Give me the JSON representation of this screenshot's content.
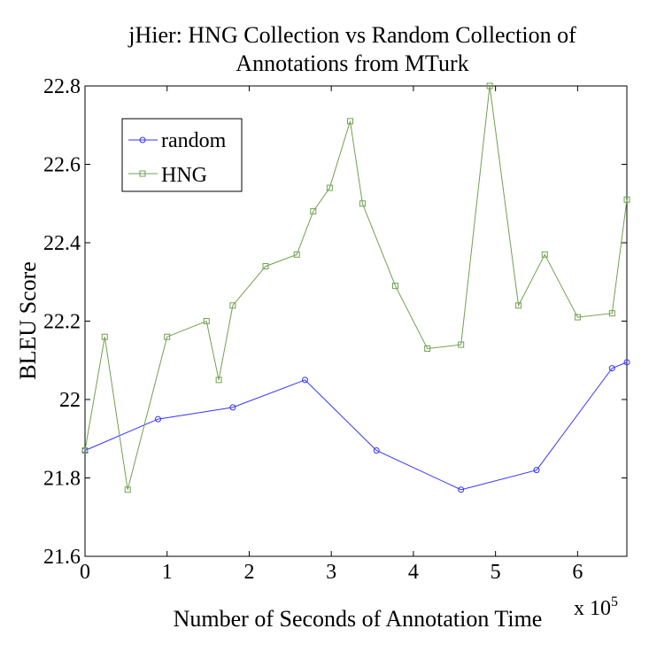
{
  "chart_data": {
    "type": "line",
    "title": [
      "jHier: HNG Collection vs Random Collection of",
      "Annotations from MTurk"
    ],
    "xlabel": "Number of Seconds of Annotation Time",
    "ylabel": "BLEU Score",
    "x_multiplier_label": "x 10",
    "x_multiplier_exp": "5",
    "xlim": [
      0,
      6.6
    ],
    "ylim": [
      21.6,
      22.8
    ],
    "x_ticks": [
      0,
      1,
      2,
      3,
      4,
      5,
      6
    ],
    "x_tick_labels": [
      "0",
      "1",
      "2",
      "3",
      "4",
      "5",
      "6"
    ],
    "y_ticks": [
      21.6,
      21.8,
      22.0,
      22.2,
      22.4,
      22.6,
      22.8
    ],
    "y_tick_labels": [
      "21.6",
      "21.8",
      "22",
      "22.2",
      "22.4",
      "22.6",
      "22.8"
    ],
    "grid": false,
    "legend_position": "top-left",
    "series": [
      {
        "name": "random",
        "color": "#3333ff",
        "marker": "circle",
        "x": [
          0,
          0.89,
          1.8,
          2.68,
          3.55,
          4.58,
          5.5,
          6.42,
          6.6
        ],
        "y": [
          21.87,
          21.95,
          21.98,
          22.05,
          21.87,
          21.77,
          21.82,
          22.08,
          22.095
        ]
      },
      {
        "name": "HNG",
        "color": "#70a050",
        "marker": "square",
        "x": [
          0,
          0.24,
          0.52,
          1.0,
          1.48,
          1.63,
          1.8,
          2.2,
          2.58,
          2.78,
          2.98,
          3.23,
          3.38,
          3.78,
          4.17,
          4.58,
          4.93,
          5.28,
          5.6,
          6.0,
          6.42,
          6.6
        ],
        "y": [
          21.87,
          22.16,
          21.77,
          22.16,
          22.2,
          22.05,
          22.24,
          22.34,
          22.37,
          22.48,
          22.54,
          22.71,
          22.5,
          22.29,
          22.13,
          22.14,
          22.8,
          22.24,
          22.37,
          22.21,
          22.22,
          22.51
        ]
      }
    ]
  }
}
